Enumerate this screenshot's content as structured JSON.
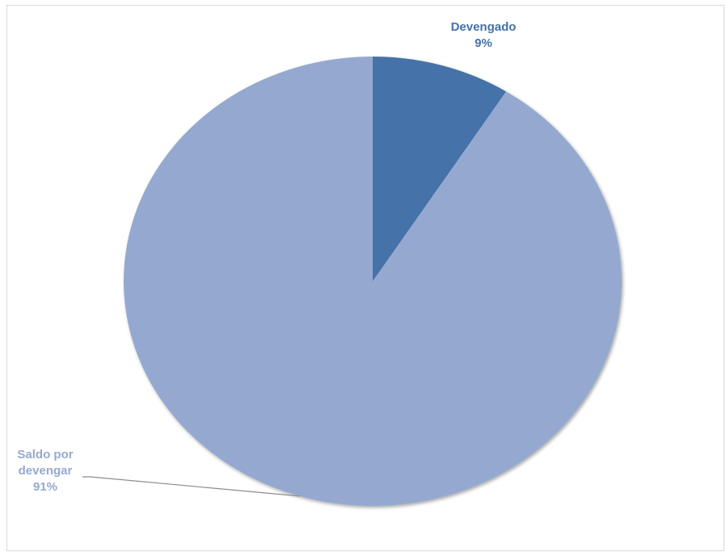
{
  "chart_data": {
    "type": "pie",
    "title": "",
    "start_angle_deg": 0,
    "direction": "clockwise",
    "legend": "none",
    "slices": [
      {
        "label_lines": [
          "Devengado"
        ],
        "percent_label": "9%",
        "value": 9,
        "color": "#4472a8",
        "label_color": "#4472a8"
      },
      {
        "label_lines": [
          "Saldo por",
          "devengar"
        ],
        "percent_label": "91%",
        "value": 91,
        "color": "#95a9d0",
        "label_color": "#95a9d0"
      }
    ]
  }
}
